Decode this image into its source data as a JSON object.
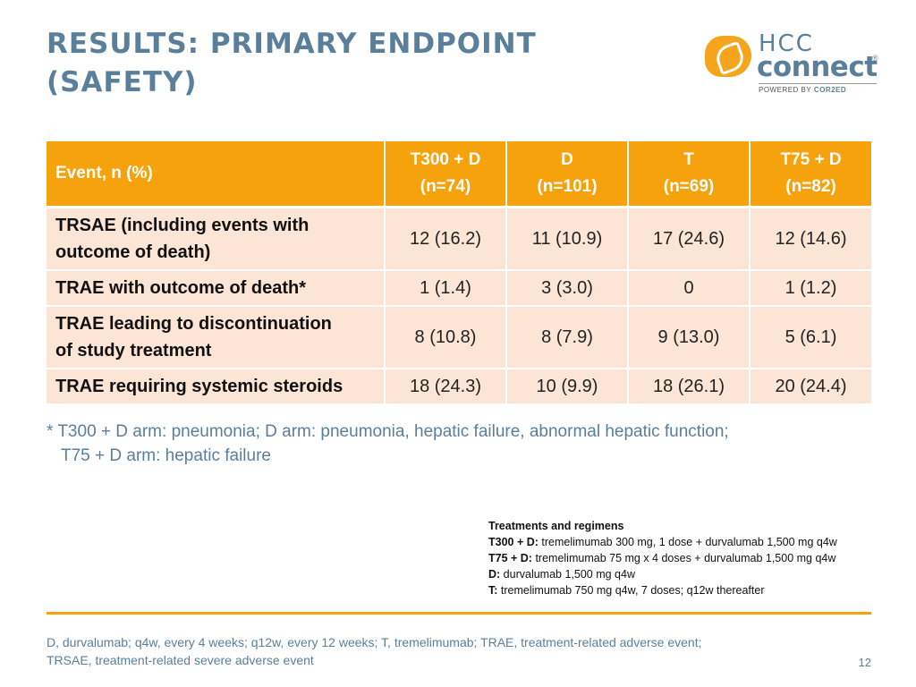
{
  "title": {
    "line1": "RESULTS: PRIMARY ENDPOINT",
    "line2": "(SAFETY)"
  },
  "logo": {
    "hcc": "HCC",
    "connect": "connect",
    "registered": "®",
    "powered_prefix": "POWERED BY ",
    "powered_brand": "COR2ED"
  },
  "table": {
    "header": {
      "event_label": "Event, n (%)",
      "arms": [
        {
          "name": "T300 + D",
          "n": "(n=74)"
        },
        {
          "name": "D",
          "n": "(n=101)"
        },
        {
          "name": "T",
          "n": "(n=69)"
        },
        {
          "name": "T75 + D",
          "n": "(n=82)"
        }
      ]
    },
    "rows": [
      {
        "event_l1": "TRSAE (including events with",
        "event_l2": "outcome of death)",
        "values": [
          "12 (16.2)",
          "11 (10.9)",
          "17 (24.6)",
          "12 (14.6)"
        ]
      },
      {
        "event_l1": "TRAE with outcome of death*",
        "event_l2": "",
        "values": [
          "1 (1.4)",
          "3 (3.0)",
          "0",
          "1 (1.2)"
        ]
      },
      {
        "event_l1": "TRAE leading to discontinuation",
        "event_l2": "of study treatment",
        "values": [
          "8 (10.8)",
          "8 (7.9)",
          "9 (13.0)",
          "5 (6.1)"
        ]
      },
      {
        "event_l1": "TRAE requiring systemic steroids",
        "event_l2": "",
        "values": [
          "18 (24.3)",
          "10 (9.9)",
          "18 (26.1)",
          "20 (24.4)"
        ]
      }
    ]
  },
  "footnote": {
    "line1": "* T300 + D arm: pneumonia; D arm: pneumonia, hepatic failure, abnormal hepatic function;",
    "line2": "T75 + D arm: hepatic failure"
  },
  "regimens": {
    "heading": "Treatments and regimens",
    "items": [
      {
        "label": "T300 + D:",
        "text": " tremelimumab 300 mg, 1 dose + durvalumab 1,500 mg q4w"
      },
      {
        "label": "T75 + D:",
        "text": " tremelimumab 75 mg x 4 doses + durvalumab 1,500 mg q4w"
      },
      {
        "label": "D:",
        "text": " durvalumab 1,500 mg q4w"
      },
      {
        "label": "T:",
        "text": " tremelimumab 750 mg q4w, 7 doses; q12w thereafter"
      }
    ]
  },
  "abbreviations": {
    "line1": "D, durvalumab; q4w, every 4 weeks; q12w, every 12 weeks; T, tremelimumab; TRAE, treatment-related adverse event;",
    "line2": "TRSAE, treatment-related severe adverse event"
  },
  "page_number": "12",
  "colors": {
    "title": "#5a7f9a",
    "header_bg": "#f5a20c",
    "row_bg": "#fde5d6",
    "accent": "#f5a20c"
  }
}
